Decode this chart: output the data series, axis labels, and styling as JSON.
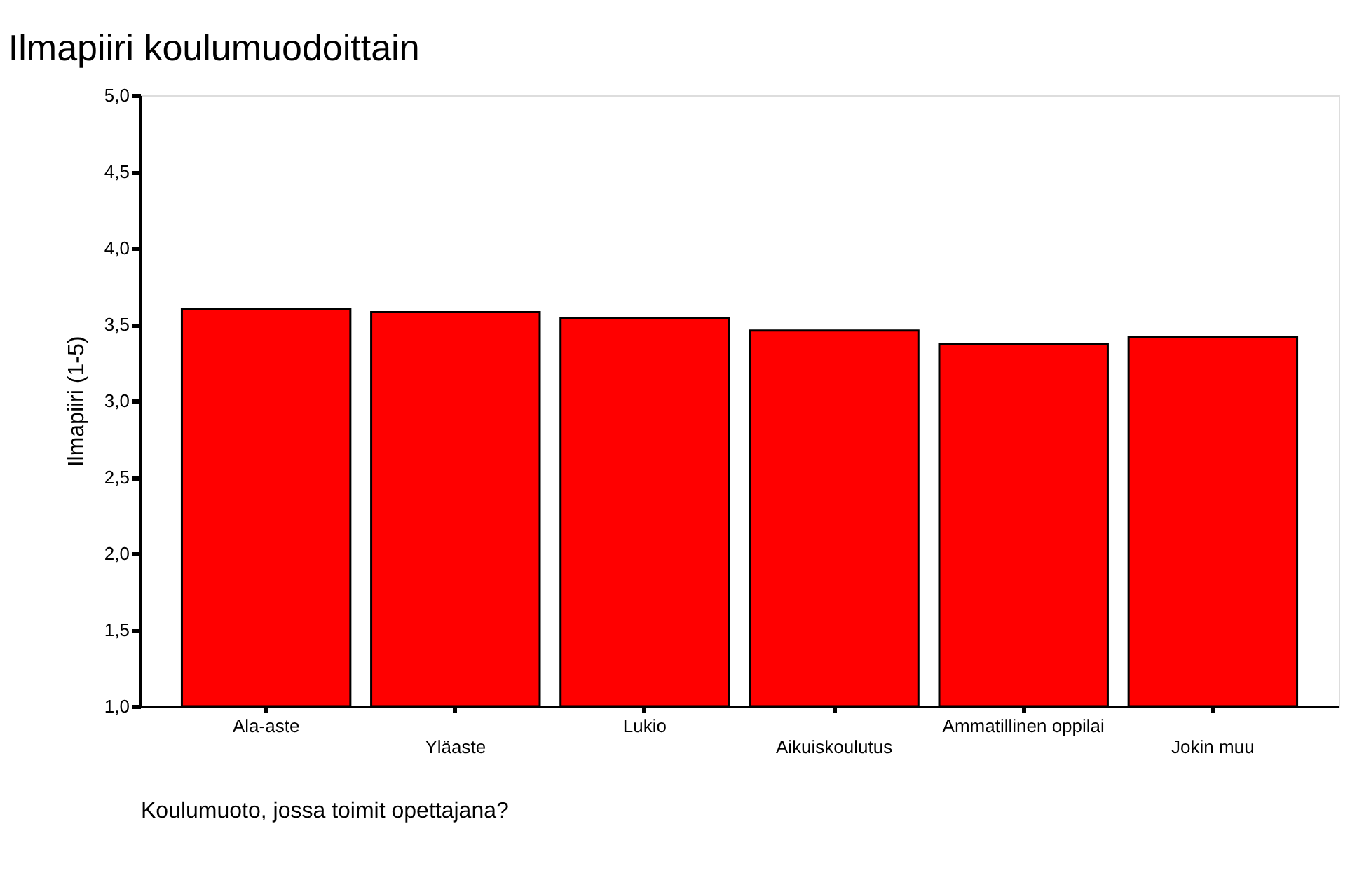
{
  "chart_data": {
    "type": "bar",
    "title": "Ilmapiiri koulumuodoittain",
    "xlabel": "Koulumuoto, jossa toimit opettajana?",
    "ylabel": "Ilmapiiri (1-5)",
    "categories": [
      "Ala-aste",
      "Yläaste",
      "Lukio",
      "Aikuiskoulutus",
      "Ammatillinen oppilai",
      "Jokin muu"
    ],
    "values": [
      3.6,
      3.58,
      3.54,
      3.46,
      3.37,
      3.42
    ],
    "color": "#ff0000",
    "ylim": [
      1,
      5
    ],
    "yticks": [
      {
        "value": 1,
        "label": "1,0"
      },
      {
        "value": 1.5,
        "label": "1,5"
      },
      {
        "value": 2,
        "label": "2,0"
      },
      {
        "value": 2.5,
        "label": "2,5"
      },
      {
        "value": 3,
        "label": "3,0"
      },
      {
        "value": 3.5,
        "label": "3,5"
      },
      {
        "value": 4,
        "label": "4,0"
      },
      {
        "value": 4.5,
        "label": "4,5"
      },
      {
        "value": 5,
        "label": "5,0"
      }
    ],
    "grid": false
  }
}
